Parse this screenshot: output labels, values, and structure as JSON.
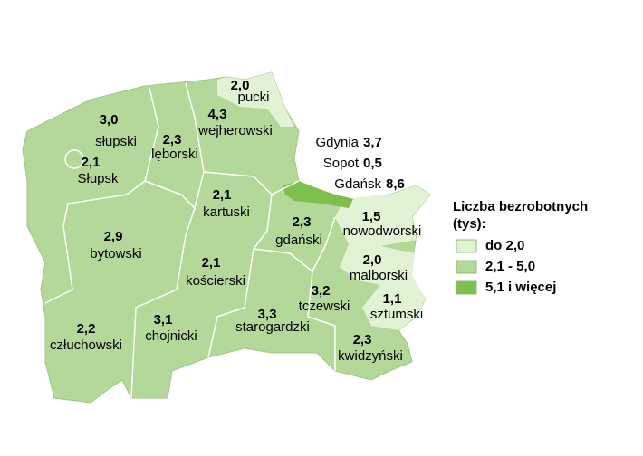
{
  "regions": [
    {
      "value": "2,0",
      "name": "pucki"
    },
    {
      "value": "3,0",
      "name": "słupski"
    },
    {
      "value": "4,3",
      "name": "wejherowski"
    },
    {
      "value": "2,3",
      "name": "lęborski"
    },
    {
      "value": "2,1",
      "name": "Słupsk"
    },
    {
      "value": "2,1",
      "name": "kartuski"
    },
    {
      "value": "2,3",
      "name": "gdański"
    },
    {
      "value": "1,5",
      "name": "nowodworski"
    },
    {
      "value": "2,9",
      "name": "bytowski"
    },
    {
      "value": "2,1",
      "name": "kościerski"
    },
    {
      "value": "2,0",
      "name": "malborski"
    },
    {
      "value": "3,2",
      "name": "tczewski"
    },
    {
      "value": "1,1",
      "name": "sztumski"
    },
    {
      "value": "2,2",
      "name": "człuchowski"
    },
    {
      "value": "3,1",
      "name": "chojnicki"
    },
    {
      "value": "3,3",
      "name": "starogardzki"
    },
    {
      "value": "2,3",
      "name": "kwidzyński"
    }
  ],
  "cities": [
    {
      "name": "Gdynia",
      "value": "3,7"
    },
    {
      "name": "Sopot",
      "value": "0,5"
    },
    {
      "name": "Gdańsk",
      "value": "8,6"
    }
  ],
  "legend": {
    "title": [
      "Liczba bezrobotnych",
      "(tys):"
    ],
    "items": [
      {
        "label": "do 2,0",
        "color": "#e2f2d5"
      },
      {
        "label": "2,1 - 5,0",
        "color": "#b4d89a"
      },
      {
        "label": "5,1 i więcej",
        "color": "#7dc04f"
      }
    ]
  }
}
